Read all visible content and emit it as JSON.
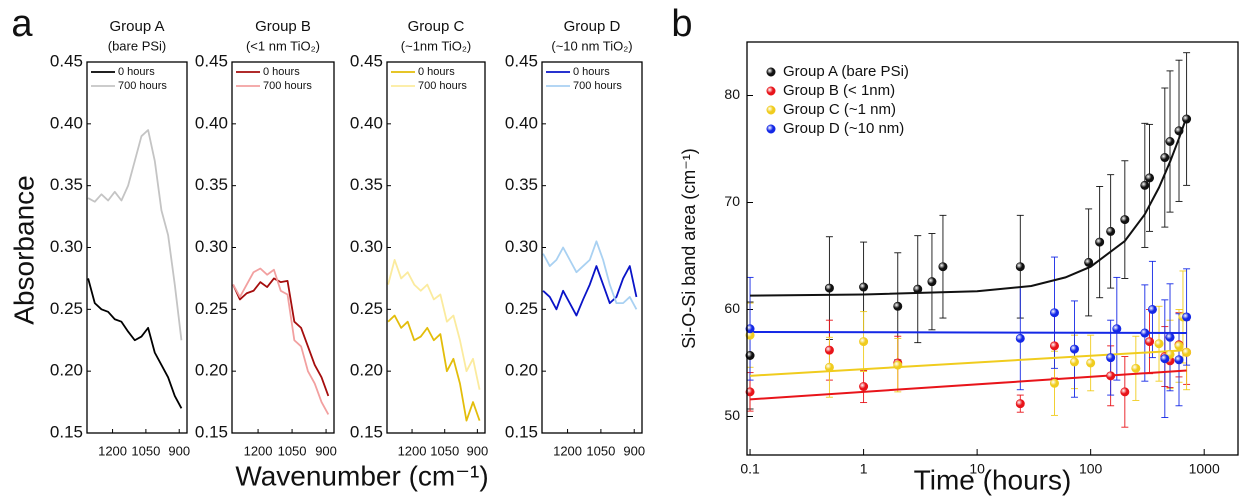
{
  "figure": {
    "panels": [
      {
        "label": "a",
        "xlabel": "Wavenumber (cm⁻¹)",
        "ylabel": "Absorbance"
      },
      {
        "label": "b"
      }
    ]
  },
  "chart_data": [
    {
      "type": "line",
      "title": "Group A",
      "subtitle": "(bare PSi)",
      "x": [
        1310,
        1280,
        1250,
        1220,
        1190,
        1160,
        1130,
        1100,
        1070,
        1040,
        1010,
        980,
        950,
        920,
        890
      ],
      "series": [
        {
          "name": "0 hours",
          "color": "#000000",
          "values": [
            0.275,
            0.255,
            0.25,
            0.248,
            0.242,
            0.24,
            0.232,
            0.225,
            0.228,
            0.235,
            0.215,
            0.205,
            0.195,
            0.18,
            0.17
          ]
        },
        {
          "name": "700 hours",
          "color": "#c4c4c4",
          "values": [
            0.34,
            0.337,
            0.343,
            0.338,
            0.345,
            0.338,
            0.35,
            0.37,
            0.39,
            0.395,
            0.37,
            0.33,
            0.31,
            0.27,
            0.225
          ]
        }
      ],
      "xlim": [
        1315,
        865
      ],
      "xticks": [
        1200,
        1050,
        900
      ],
      "ylim": [
        0.15,
        0.45
      ],
      "yticks": [
        0.15,
        {
          "value": 0.2,
          "label": "0.20"
        },
        0.25,
        {
          "value": 0.3,
          "label": "0.30"
        },
        0.35,
        {
          "value": 0.4,
          "label": "0.40"
        },
        0.45
      ]
    },
    {
      "type": "line",
      "title": "Group B",
      "subtitle": "(<1 nm TiO₂)",
      "x": [
        1310,
        1280,
        1250,
        1220,
        1190,
        1160,
        1130,
        1100,
        1070,
        1040,
        1010,
        980,
        950,
        920,
        890
      ],
      "series": [
        {
          "name": "0 hours",
          "color": "#a50d0d",
          "values": [
            0.27,
            0.258,
            0.263,
            0.265,
            0.272,
            0.268,
            0.275,
            0.272,
            0.273,
            0.24,
            0.235,
            0.22,
            0.205,
            0.195,
            0.18
          ]
        },
        {
          "name": "700 hours",
          "color": "#f2a0a0",
          "values": [
            0.27,
            0.26,
            0.27,
            0.28,
            0.283,
            0.278,
            0.282,
            0.265,
            0.262,
            0.225,
            0.22,
            0.2,
            0.19,
            0.175,
            0.165
          ]
        }
      ],
      "xlim": [
        1315,
        865
      ],
      "xticks": [
        1200,
        1050,
        900
      ],
      "ylim": [
        0.15,
        0.45
      ],
      "yticks": [
        0.15,
        {
          "value": 0.2,
          "label": "0.20"
        },
        0.25,
        {
          "value": 0.3,
          "label": "0.30"
        },
        0.35,
        {
          "value": 0.4,
          "label": "0.40"
        },
        0.45
      ]
    },
    {
      "type": "line",
      "title": "Group C",
      "subtitle": "(~1nm TiO₂)",
      "x": [
        1310,
        1280,
        1250,
        1220,
        1190,
        1160,
        1130,
        1100,
        1070,
        1040,
        1010,
        980,
        950,
        920,
        890
      ],
      "series": [
        {
          "name": "0 hours",
          "color": "#e3bd0a",
          "values": [
            0.24,
            0.245,
            0.235,
            0.24,
            0.225,
            0.228,
            0.235,
            0.225,
            0.23,
            0.2,
            0.21,
            0.19,
            0.16,
            0.175,
            0.16
          ]
        },
        {
          "name": "700 hours",
          "color": "#fbeb9e",
          "values": [
            0.27,
            0.29,
            0.275,
            0.28,
            0.27,
            0.265,
            0.27,
            0.258,
            0.262,
            0.24,
            0.245,
            0.225,
            0.2,
            0.21,
            0.185
          ]
        }
      ],
      "xlim": [
        1315,
        865
      ],
      "xticks": [
        1200,
        1050,
        900
      ],
      "ylim": [
        0.15,
        0.45
      ],
      "yticks": [
        0.15,
        {
          "value": 0.2,
          "label": "0.20"
        },
        0.25,
        {
          "value": 0.3,
          "label": "0.30"
        },
        0.35,
        {
          "value": 0.4,
          "label": "0.40"
        },
        0.45
      ]
    },
    {
      "type": "line",
      "title": "Group D",
      "subtitle": "(~10 nm TiO₂)",
      "x": [
        1310,
        1280,
        1250,
        1220,
        1190,
        1160,
        1130,
        1100,
        1070,
        1040,
        1010,
        980,
        950,
        920,
        890
      ],
      "series": [
        {
          "name": "0 hours",
          "color": "#0a14c8",
          "values": [
            0.265,
            0.26,
            0.25,
            0.265,
            0.255,
            0.245,
            0.258,
            0.27,
            0.285,
            0.27,
            0.255,
            0.26,
            0.275,
            0.285,
            0.26
          ]
        },
        {
          "name": "700 hours",
          "color": "#a9d1f2",
          "values": [
            0.295,
            0.285,
            0.29,
            0.3,
            0.29,
            0.28,
            0.285,
            0.29,
            0.305,
            0.29,
            0.27,
            0.255,
            0.255,
            0.26,
            0.25
          ]
        }
      ],
      "xlim": [
        1315,
        865
      ],
      "xticks": [
        1200,
        1050,
        900
      ],
      "ylim": [
        0.15,
        0.45
      ],
      "yticks": [
        0.15,
        {
          "value": 0.2,
          "label": "0.20"
        },
        0.25,
        {
          "value": 0.3,
          "label": "0.30"
        },
        0.35,
        {
          "value": 0.4,
          "label": "0.40"
        },
        0.45
      ]
    },
    {
      "type": "scatter",
      "xlabel": "Time (hours)",
      "ylabel": "Si-O-Si band area (cm⁻¹)",
      "xscale": "log",
      "xlim": [
        0.094,
        1985
      ],
      "xticks": [
        0.1,
        1,
        10,
        100,
        1000
      ],
      "ylim": [
        46.4,
        85
      ],
      "yticks": [
        50,
        60,
        70,
        80
      ],
      "series": [
        {
          "name": "Group A (bare PSi)",
          "color": "#111111",
          "x": [
            0.1,
            0.5,
            1,
            2,
            3,
            4,
            5,
            24,
            96,
            120,
            150,
            200,
            300,
            330,
            450,
            500,
            600,
            700
          ],
          "values": [
            55.7,
            62,
            62.1,
            60.3,
            61.9,
            62.6,
            64,
            64,
            64.4,
            66.3,
            67.3,
            68.4,
            71.6,
            72.3,
            74.2,
            75.7,
            76.7,
            77.8
          ],
          "err": [
            5,
            4.8,
            4.2,
            5,
            5,
            4.5,
            4.8,
            4.8,
            5,
            5.2,
            5.3,
            5.5,
            5.8,
            5,
            6.5,
            6.6,
            6.6,
            6.2
          ],
          "fit_x": [
            0.1,
            1,
            10,
            30,
            60,
            100,
            200,
            300,
            400,
            500,
            600,
            700
          ],
          "fit_values": [
            61.3,
            61.4,
            61.7,
            62.2,
            63.0,
            64.0,
            66.4,
            68.9,
            71.4,
            73.8,
            76.0,
            78.0
          ]
        },
        {
          "name": "Group B (< 1nm)",
          "color": "#e8141a",
          "x": [
            0.1,
            0.5,
            1,
            2,
            24,
            48,
            150,
            200,
            330,
            450,
            500,
            600,
            700
          ],
          "values": [
            52.3,
            56.2,
            52.8,
            55,
            51.2,
            56.6,
            53.8,
            52.3,
            57,
            55.6,
            55.2,
            56.7,
            56
          ],
          "err": [
            1.8,
            2.8,
            1.5,
            2.5,
            0.8,
            3,
            2.8,
            3.3,
            3,
            2.8,
            2.5,
            3,
            3
          ],
          "fit_x": [
            0.1,
            700
          ],
          "fit_values": [
            51.6,
            54.3
          ]
        },
        {
          "name": "Group C (~1 nm)",
          "color": "#f0cc1e",
          "x": [
            0.1,
            0.5,
            1,
            2,
            48,
            72,
            100,
            250,
            400,
            500,
            600,
            650,
            700
          ],
          "values": [
            57.6,
            54.6,
            57,
            54.8,
            53.1,
            55.1,
            55,
            54.5,
            56.8,
            55.8,
            56.6,
            59.3,
            56
          ],
          "err": [
            3,
            2.8,
            2.8,
            2.5,
            3,
            2.5,
            2.6,
            3,
            3.5,
            3.2,
            3.4,
            4.3,
            3.5
          ],
          "fit_x": [
            0.1,
            700
          ],
          "fit_values": [
            53.8,
            56.2
          ]
        },
        {
          "name": "Group D (~10 nm)",
          "color": "#1428e6",
          "x": [
            0.1,
            24,
            48,
            72,
            150,
            170,
            300,
            350,
            450,
            500,
            600,
            700
          ],
          "values": [
            58.2,
            57.3,
            59.7,
            56.3,
            55.5,
            58.2,
            57.8,
            60,
            55.4,
            57.4,
            55.3,
            59.3
          ],
          "err": [
            4.8,
            4.8,
            5.2,
            4.5,
            3.5,
            4.8,
            4.5,
            4.5,
            5.5,
            5,
            4.3,
            4.5
          ],
          "fit_x": [
            0.1,
            700
          ],
          "fit_values": [
            57.9,
            57.8
          ]
        }
      ]
    }
  ]
}
